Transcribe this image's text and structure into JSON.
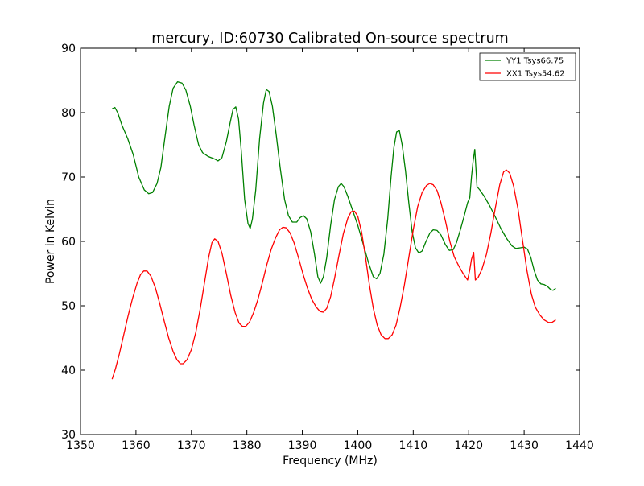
{
  "chart_data": {
    "type": "line",
    "title": "mercury, ID:60730 Calibrated On-source spectrum",
    "xlabel": "Frequency (MHz)",
    "ylabel": "Power in Kelvin",
    "xlim": [
      1350,
      1440
    ],
    "ylim": [
      30,
      90
    ],
    "xticks": [
      1350,
      1360,
      1370,
      1380,
      1390,
      1400,
      1410,
      1420,
      1430,
      1440
    ],
    "yticks": [
      30,
      40,
      50,
      60,
      70,
      80,
      90
    ],
    "grid": false,
    "legend_position": "top-right",
    "series": [
      {
        "name": "YY1 Tsys66.75",
        "color": "#008000",
        "points": [
          [
            1355.7,
            80.6
          ],
          [
            1356.2,
            80.8
          ],
          [
            1356.7,
            80.0
          ],
          [
            1357.5,
            78.0
          ],
          [
            1358.5,
            76.0
          ],
          [
            1359.5,
            73.5
          ],
          [
            1360.5,
            70.0
          ],
          [
            1361.5,
            68.0
          ],
          [
            1362.3,
            67.4
          ],
          [
            1363.0,
            67.6
          ],
          [
            1363.8,
            69.0
          ],
          [
            1364.5,
            71.5
          ],
          [
            1365.2,
            76.0
          ],
          [
            1366.0,
            81.0
          ],
          [
            1366.7,
            83.8
          ],
          [
            1367.5,
            84.8
          ],
          [
            1368.3,
            84.6
          ],
          [
            1369.0,
            83.5
          ],
          [
            1369.8,
            81.0
          ],
          [
            1370.5,
            78.0
          ],
          [
            1371.3,
            75.0
          ],
          [
            1372.0,
            73.8
          ],
          [
            1373.0,
            73.2
          ],
          [
            1374.2,
            72.8
          ],
          [
            1374.8,
            72.5
          ],
          [
            1375.5,
            73.0
          ],
          [
            1376.3,
            75.5
          ],
          [
            1377.0,
            78.5
          ],
          [
            1377.5,
            80.5
          ],
          [
            1378.0,
            80.9
          ],
          [
            1378.5,
            79.0
          ],
          [
            1379.0,
            74.0
          ],
          [
            1379.6,
            66.5
          ],
          [
            1380.2,
            62.8
          ],
          [
            1380.6,
            62.0
          ],
          [
            1381.0,
            63.5
          ],
          [
            1381.6,
            68.0
          ],
          [
            1382.3,
            76.0
          ],
          [
            1383.0,
            81.5
          ],
          [
            1383.5,
            83.6
          ],
          [
            1384.0,
            83.3
          ],
          [
            1384.6,
            81.0
          ],
          [
            1385.3,
            76.5
          ],
          [
            1386.0,
            71.5
          ],
          [
            1386.8,
            66.5
          ],
          [
            1387.5,
            64.0
          ],
          [
            1388.2,
            63.0
          ],
          [
            1389.0,
            63.0
          ],
          [
            1389.6,
            63.7
          ],
          [
            1390.2,
            64.0
          ],
          [
            1390.8,
            63.5
          ],
          [
            1391.5,
            61.5
          ],
          [
            1392.2,
            58.0
          ],
          [
            1392.8,
            54.5
          ],
          [
            1393.3,
            53.5
          ],
          [
            1393.8,
            54.5
          ],
          [
            1394.4,
            57.5
          ],
          [
            1395.1,
            62.5
          ],
          [
            1395.8,
            66.5
          ],
          [
            1396.5,
            68.5
          ],
          [
            1397.0,
            69.0
          ],
          [
            1397.5,
            68.5
          ],
          [
            1398.2,
            67.0
          ],
          [
            1399.0,
            65.0
          ],
          [
            1400.0,
            62.5
          ],
          [
            1401.0,
            59.5
          ],
          [
            1402.0,
            56.5
          ],
          [
            1402.8,
            54.5
          ],
          [
            1403.4,
            54.2
          ],
          [
            1404.0,
            55.0
          ],
          [
            1404.7,
            58.0
          ],
          [
            1405.4,
            63.5
          ],
          [
            1406.0,
            70.0
          ],
          [
            1406.5,
            74.5
          ],
          [
            1407.0,
            77.0
          ],
          [
            1407.5,
            77.2
          ],
          [
            1408.0,
            75.0
          ],
          [
            1408.6,
            71.0
          ],
          [
            1409.2,
            66.0
          ],
          [
            1409.8,
            61.5
          ],
          [
            1410.4,
            59.0
          ],
          [
            1411.0,
            58.2
          ],
          [
            1411.6,
            58.5
          ],
          [
            1412.2,
            59.8
          ],
          [
            1413.0,
            61.3
          ],
          [
            1413.6,
            61.8
          ],
          [
            1414.3,
            61.7
          ],
          [
            1415.0,
            61.0
          ],
          [
            1415.8,
            59.5
          ],
          [
            1416.5,
            58.6
          ],
          [
            1417.2,
            58.7
          ],
          [
            1417.8,
            59.8
          ],
          [
            1418.5,
            61.8
          ],
          [
            1419.2,
            64.0
          ],
          [
            1419.8,
            66.0
          ],
          [
            1420.2,
            66.8
          ],
          [
            1420.5,
            70.0
          ],
          [
            1420.8,
            72.5
          ],
          [
            1421.1,
            74.3
          ],
          [
            1421.5,
            68.5
          ],
          [
            1422.0,
            68.0
          ],
          [
            1422.8,
            67.0
          ],
          [
            1423.8,
            65.5
          ],
          [
            1424.8,
            63.8
          ],
          [
            1425.8,
            62.0
          ],
          [
            1426.8,
            60.5
          ],
          [
            1427.8,
            59.3
          ],
          [
            1428.5,
            58.9
          ],
          [
            1429.3,
            59.0
          ],
          [
            1430.0,
            59.1
          ],
          [
            1430.6,
            58.8
          ],
          [
            1431.2,
            57.5
          ],
          [
            1431.8,
            55.5
          ],
          [
            1432.4,
            54.0
          ],
          [
            1433.0,
            53.4
          ],
          [
            1433.6,
            53.3
          ],
          [
            1434.2,
            53.0
          ],
          [
            1434.8,
            52.5
          ],
          [
            1435.2,
            52.4
          ],
          [
            1435.7,
            52.7
          ]
        ]
      },
      {
        "name": "XX1 Tsys54.62",
        "color": "#ff0000",
        "points": [
          [
            1355.7,
            38.6
          ],
          [
            1356.3,
            40.2
          ],
          [
            1357.0,
            42.5
          ],
          [
            1357.8,
            45.5
          ],
          [
            1358.6,
            48.5
          ],
          [
            1359.4,
            51.2
          ],
          [
            1360.2,
            53.5
          ],
          [
            1360.8,
            54.8
          ],
          [
            1361.4,
            55.4
          ],
          [
            1362.0,
            55.4
          ],
          [
            1362.7,
            54.6
          ],
          [
            1363.5,
            52.8
          ],
          [
            1364.3,
            50.3
          ],
          [
            1365.1,
            47.6
          ],
          [
            1365.9,
            45.0
          ],
          [
            1366.7,
            42.9
          ],
          [
            1367.4,
            41.6
          ],
          [
            1368.0,
            41.0
          ],
          [
            1368.5,
            41.0
          ],
          [
            1369.2,
            41.6
          ],
          [
            1370.0,
            43.2
          ],
          [
            1370.8,
            45.9
          ],
          [
            1371.6,
            49.6
          ],
          [
            1372.4,
            53.8
          ],
          [
            1373.1,
            57.5
          ],
          [
            1373.7,
            59.8
          ],
          [
            1374.2,
            60.4
          ],
          [
            1374.8,
            60.0
          ],
          [
            1375.5,
            58.2
          ],
          [
            1376.3,
            55.0
          ],
          [
            1377.1,
            51.6
          ],
          [
            1377.9,
            48.9
          ],
          [
            1378.6,
            47.3
          ],
          [
            1379.2,
            46.8
          ],
          [
            1379.8,
            46.8
          ],
          [
            1380.5,
            47.5
          ],
          [
            1381.2,
            48.9
          ],
          [
            1382.0,
            51.0
          ],
          [
            1382.8,
            53.6
          ],
          [
            1383.6,
            56.4
          ],
          [
            1384.4,
            58.8
          ],
          [
            1385.2,
            60.6
          ],
          [
            1385.9,
            61.8
          ],
          [
            1386.5,
            62.2
          ],
          [
            1387.1,
            62.1
          ],
          [
            1387.8,
            61.3
          ],
          [
            1388.5,
            59.8
          ],
          [
            1389.3,
            57.5
          ],
          [
            1390.1,
            55.0
          ],
          [
            1390.9,
            52.8
          ],
          [
            1391.7,
            51.0
          ],
          [
            1392.5,
            49.8
          ],
          [
            1393.2,
            49.1
          ],
          [
            1393.8,
            49.0
          ],
          [
            1394.4,
            49.6
          ],
          [
            1395.1,
            51.4
          ],
          [
            1395.8,
            54.2
          ],
          [
            1396.6,
            57.8
          ],
          [
            1397.4,
            61.2
          ],
          [
            1398.2,
            63.6
          ],
          [
            1398.8,
            64.6
          ],
          [
            1399.4,
            64.7
          ],
          [
            1400.0,
            63.9
          ],
          [
            1400.7,
            61.4
          ],
          [
            1401.4,
            57.5
          ],
          [
            1402.1,
            53.2
          ],
          [
            1402.8,
            49.6
          ],
          [
            1403.5,
            47.0
          ],
          [
            1404.2,
            45.5
          ],
          [
            1404.9,
            44.9
          ],
          [
            1405.5,
            44.9
          ],
          [
            1406.2,
            45.5
          ],
          [
            1406.9,
            47.0
          ],
          [
            1407.6,
            49.6
          ],
          [
            1408.4,
            53.2
          ],
          [
            1409.2,
            57.5
          ],
          [
            1410.0,
            61.8
          ],
          [
            1410.8,
            65.4
          ],
          [
            1411.6,
            67.6
          ],
          [
            1412.4,
            68.7
          ],
          [
            1413.0,
            69.0
          ],
          [
            1413.6,
            68.8
          ],
          [
            1414.3,
            67.9
          ],
          [
            1415.0,
            66.0
          ],
          [
            1415.8,
            63.2
          ],
          [
            1416.6,
            60.0
          ],
          [
            1417.4,
            57.6
          ],
          [
            1418.2,
            56.2
          ],
          [
            1419.0,
            55.0
          ],
          [
            1419.8,
            54.0
          ],
          [
            1420.2,
            55.6
          ],
          [
            1420.5,
            57.2
          ],
          [
            1420.9,
            58.3
          ],
          [
            1421.2,
            54.0
          ],
          [
            1421.7,
            54.4
          ],
          [
            1422.4,
            55.7
          ],
          [
            1423.2,
            58.0
          ],
          [
            1424.0,
            61.3
          ],
          [
            1424.8,
            65.2
          ],
          [
            1425.6,
            68.8
          ],
          [
            1426.3,
            70.8
          ],
          [
            1426.8,
            71.1
          ],
          [
            1427.4,
            70.6
          ],
          [
            1428.1,
            68.6
          ],
          [
            1428.9,
            65.0
          ],
          [
            1429.7,
            60.2
          ],
          [
            1430.5,
            55.5
          ],
          [
            1431.3,
            51.8
          ],
          [
            1432.0,
            49.8
          ],
          [
            1432.8,
            48.6
          ],
          [
            1433.6,
            47.8
          ],
          [
            1434.4,
            47.4
          ],
          [
            1435.0,
            47.4
          ],
          [
            1435.7,
            47.8
          ]
        ]
      }
    ]
  }
}
